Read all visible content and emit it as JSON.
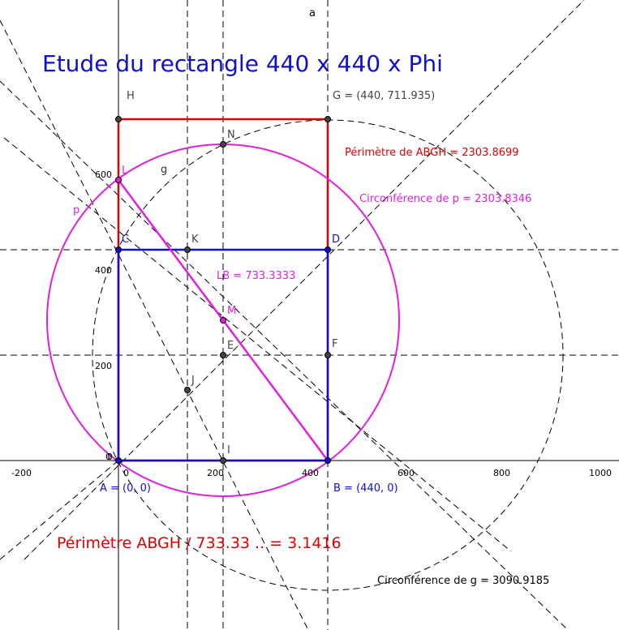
{
  "title": "Etude du rectangle 440 x 440 x Phi",
  "axes": {
    "x_ticks": [
      "-200",
      "0",
      "200",
      "400",
      "600",
      "800",
      "1000"
    ],
    "y_ticks": [
      "0",
      "200",
      "400",
      "600"
    ],
    "origin": "0",
    "line_a": "a"
  },
  "points": {
    "H": "H",
    "G": "G = (440, 711.935)",
    "N": "N",
    "L": "L",
    "C": "C",
    "K": "K",
    "D": "D",
    "M": "M",
    "E": "E",
    "F": "F",
    "J": "J",
    "I": "I",
    "A": "A = (0, 0)",
    "B": "B = (440, 0)"
  },
  "curves": {
    "g": "g",
    "p": "p"
  },
  "annotations": {
    "perimeter": "Périmètre de  ABGH = 2303.8699",
    "circ_p": "Circonférence de p = 2303.8346",
    "lb": "LB = 733.3333",
    "ratio": "Périmètre ABGH / 733.33 .. = 3.1416",
    "circ_g": "Circonférence de g = 3090.9185"
  }
}
